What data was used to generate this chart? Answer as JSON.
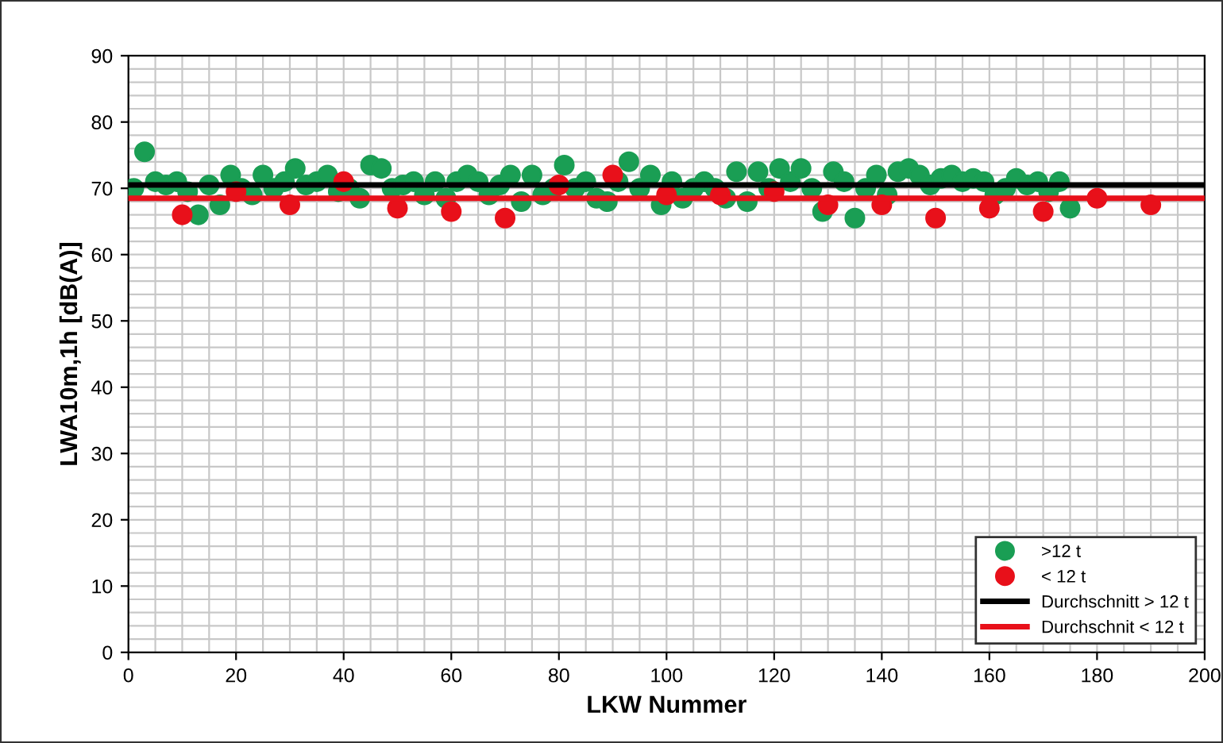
{
  "chart_data": {
    "type": "scatter",
    "xlabel": "LKW Nummer",
    "ylabel": "LWA10m,1h [dB(A)]",
    "xlim": [
      0,
      200
    ],
    "xticks": [
      0,
      20,
      40,
      60,
      80,
      100,
      120,
      140,
      160,
      180,
      200
    ],
    "ylim": [
      0,
      90
    ],
    "yticks": [
      0,
      10,
      20,
      30,
      40,
      50,
      60,
      70,
      80,
      90
    ],
    "grid": true,
    "legend": "bottom right",
    "marker": "circle",
    "series": [
      {
        "name": ">12 t",
        "color": "#1a9e54",
        "x": [
          1,
          3,
          5,
          7,
          9,
          11,
          13,
          15,
          17,
          19,
          21,
          23,
          25,
          27,
          29,
          31,
          33,
          35,
          37,
          39,
          41,
          43,
          45,
          47,
          49,
          51,
          53,
          55,
          57,
          59,
          61,
          63,
          65,
          67,
          69,
          71,
          73,
          75,
          77,
          79,
          81,
          83,
          85,
          87,
          89,
          91,
          93,
          95,
          97,
          99,
          101,
          103,
          105,
          107,
          109,
          111,
          113,
          115,
          117,
          119,
          121,
          123,
          125,
          127,
          129,
          131,
          133,
          135,
          137,
          139,
          141,
          143,
          145,
          147,
          149,
          151,
          153,
          155,
          157,
          159,
          161,
          163,
          165,
          167,
          169,
          171,
          173,
          175
        ],
        "values": [
          70,
          75.5,
          71,
          70.5,
          71,
          69.5,
          66,
          70.5,
          67.5,
          72,
          70,
          69,
          72,
          70,
          71,
          73,
          70.5,
          71,
          72,
          69.5,
          70,
          68.5,
          73.5,
          73,
          70,
          70.5,
          71,
          69,
          71,
          68.5,
          71,
          72,
          71,
          69,
          70.5,
          72,
          68,
          72,
          69,
          70,
          73.5,
          70,
          71,
          68.5,
          68,
          71,
          74,
          70,
          72,
          67.5,
          71,
          68.5,
          70,
          71,
          70,
          68.5,
          72.5,
          68,
          72.5,
          70,
          73,
          71,
          73,
          70,
          66.5,
          72.5,
          71,
          65.5,
          70,
          72,
          69,
          72.5,
          73,
          72,
          70.5,
          71.5,
          72,
          71,
          71.5,
          71,
          69,
          70,
          71.5,
          70.5,
          71,
          69.5,
          71,
          67
        ]
      },
      {
        "name": "< 12 t",
        "color": "#e8101a",
        "x": [
          10,
          20,
          30,
          40,
          50,
          60,
          70,
          80,
          90,
          100,
          110,
          120,
          130,
          140,
          150,
          160,
          170,
          180,
          190
        ],
        "values": [
          66,
          69.5,
          67.5,
          71,
          67,
          66.5,
          65.5,
          70.5,
          72,
          69,
          69,
          69.5,
          67.5,
          67.5,
          65.5,
          67,
          66.5,
          68.5,
          67.5
        ]
      },
      {
        "name": "Durchschnitt > 12 t",
        "type": "line",
        "marker": "none",
        "color": "#000000",
        "x": [
          0,
          200
        ],
        "values": [
          70.5,
          70.5
        ]
      },
      {
        "name": "Durchschnit < 12 t",
        "type": "line",
        "marker": "none",
        "color": "#e8101a",
        "x": [
          0,
          200
        ],
        "values": [
          68.5,
          68.5
        ]
      }
    ]
  }
}
